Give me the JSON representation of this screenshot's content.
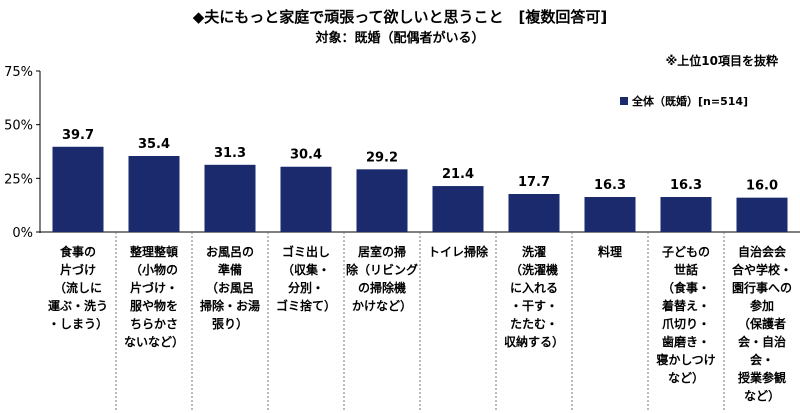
{
  "title": "◆夫にもっと家庭で頑張って欲しいと思うこと　[複数回答可]",
  "subtitle": "対象：既婚（配偶者がいる）",
  "note": "※上位10項目を抜粋",
  "chart_data": {
    "type": "bar",
    "categories": [
      "食事の\n片づけ\n（流しに\n運ぶ・洗う\n・しまう）",
      "整理整頓\n（小物の\n片づけ・\n服や物を\nちらかさ\nないなど）",
      "お風呂の\n準備\n（お風呂\n掃除・お湯\n張り）",
      "ゴミ出し\n（収集・\n分別・\nゴミ捨て）",
      "居室の掃\n除（リビング\nの掃除機\nかけなど）",
      "トイレ掃除",
      "洗濯\n（洗濯機\nに入れる\n・干す・\nたたむ・\n収納する）",
      "料理",
      "子どもの\n世話\n（食事・\n着替え・\n爪切り・\n歯磨き・\n寝かしつけ\nなど）",
      "自治会会\n合や学校・\n園行事への\n参加\n（保護者\n会・自治\n会・\n授業参観\nなど）"
    ],
    "series": [
      {
        "name": "全体（既婚）[n=514]",
        "values": [
          39.7,
          35.4,
          31.3,
          30.4,
          29.2,
          21.4,
          17.7,
          16.3,
          16.3,
          16.0
        ]
      }
    ],
    "yticks": [
      "0%",
      "25%",
      "50%",
      "75%"
    ],
    "ylim": [
      0,
      75
    ],
    "bar_color": "#1a2a6c",
    "grid": false,
    "legend_position": "top-right"
  }
}
